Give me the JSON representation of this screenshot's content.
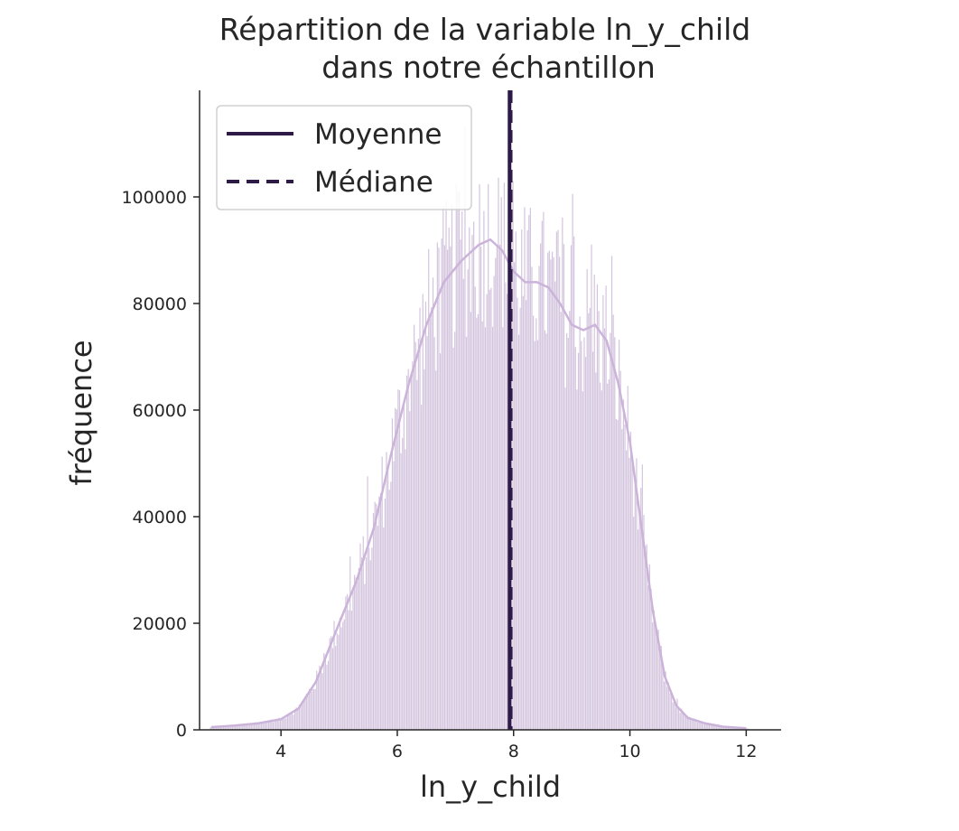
{
  "chart_data": {
    "type": "histogram",
    "title_line1": "Répartition de la variable ln_y_child",
    "title_line2": "dans notre échantillon",
    "xlabel": "ln_y_child",
    "ylabel": "fréquence",
    "xlim": [
      2.6,
      12.6
    ],
    "ylim": [
      0,
      120000
    ],
    "xticks": [
      4,
      6,
      8,
      10,
      12
    ],
    "yticks": [
      0,
      20000,
      40000,
      60000,
      80000,
      100000
    ],
    "grid": false,
    "legend_placement": "upper-left",
    "legend": [
      {
        "label": "Moyenne",
        "style": "solid"
      },
      {
        "label": "Médiane",
        "style": "dashed"
      }
    ],
    "mean": 7.93,
    "median": 7.95,
    "colors": {
      "bars": "#c9b6d6",
      "kde": "#cbb3da",
      "vlines": "#2e1a47"
    },
    "kde": {
      "x": [
        2.8,
        3.2,
        3.6,
        4.0,
        4.3,
        4.6,
        5.0,
        5.3,
        5.6,
        5.9,
        6.2,
        6.5,
        6.8,
        7.1,
        7.4,
        7.6,
        7.8,
        8.0,
        8.2,
        8.4,
        8.6,
        8.8,
        9.0,
        9.2,
        9.4,
        9.6,
        9.8,
        10.0,
        10.2,
        10.4,
        10.6,
        10.8,
        11.0,
        11.3,
        11.6,
        12.0
      ],
      "y": [
        500,
        800,
        1200,
        2000,
        4000,
        9000,
        20000,
        28000,
        38000,
        52000,
        65000,
        76000,
        84000,
        88000,
        91000,
        92000,
        90000,
        86000,
        84000,
        84000,
        83000,
        80000,
        76000,
        75000,
        76000,
        73000,
        65000,
        54000,
        38000,
        22000,
        10000,
        4500,
        2200,
        1200,
        600,
        300
      ]
    }
  }
}
